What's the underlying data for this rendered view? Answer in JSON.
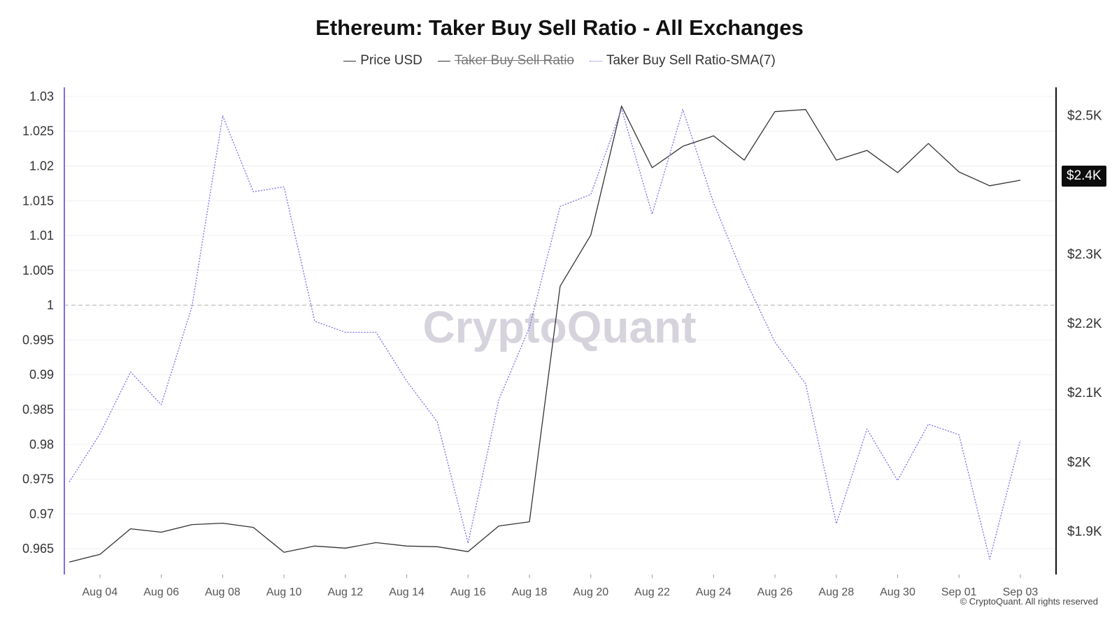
{
  "title": "Ethereum: Taker Buy Sell Ratio - All Exchanges",
  "legend": [
    {
      "label": "Price USD",
      "style": "solid",
      "color": "#333333",
      "disabled": false
    },
    {
      "label": "Taker Buy Sell Ratio",
      "style": "solid",
      "color": "#333333",
      "disabled": true
    },
    {
      "label": "Taker Buy Sell Ratio-SMA(7)",
      "style": "dotted",
      "color": "#7b6ee8",
      "disabled": false
    }
  ],
  "watermark": "CryptoQuant",
  "credit": "© CryptoQuant. All rights reserved",
  "current_price_label": "$2.4K",
  "chart_data": {
    "type": "line",
    "x": [
      "Aug 03",
      "Aug 04",
      "Aug 05",
      "Aug 06",
      "Aug 07",
      "Aug 08",
      "Aug 09",
      "Aug 10",
      "Aug 11",
      "Aug 12",
      "Aug 13",
      "Aug 14",
      "Aug 15",
      "Aug 16",
      "Aug 17",
      "Aug 18",
      "Aug 19",
      "Aug 20",
      "Aug 21",
      "Aug 22",
      "Aug 23",
      "Aug 24",
      "Aug 25",
      "Aug 26",
      "Aug 27",
      "Aug 28",
      "Aug 29",
      "Aug 30",
      "Aug 31",
      "Sep 01",
      "Sep 02",
      "Sep 03"
    ],
    "x_tick_labels": [
      "Aug 04",
      "Aug 06",
      "Aug 08",
      "Aug 10",
      "Aug 12",
      "Aug 14",
      "Aug 16",
      "Aug 18",
      "Aug 20",
      "Aug 22",
      "Aug 24",
      "Aug 26",
      "Aug 28",
      "Aug 30",
      "Sep 01",
      "Sep 03"
    ],
    "left_axis": {
      "ticks": [
        1.03,
        1.025,
        1.02,
        1.015,
        1.01,
        1.005,
        1,
        0.995,
        0.99,
        0.985,
        0.98,
        0.975,
        0.97,
        0.965
      ],
      "ylim": [
        0.9613,
        1.0313
      ]
    },
    "right_axis": {
      "ticks": [
        2500,
        2400,
        2300,
        2200,
        2100,
        2000,
        1900
      ],
      "tick_labels": [
        "$2.5K",
        "$2.4K",
        "$2.3K",
        "$2.2K",
        "$2.1K",
        "$2K",
        "$1.9K"
      ],
      "ylim": [
        1837,
        2540
      ]
    },
    "reference_line": 1,
    "grid": true,
    "series": [
      {
        "name": "Price USD",
        "axis": "right",
        "color": "#333333",
        "style": "solid",
        "values": [
          1855,
          1866,
          1903,
          1898,
          1909,
          1911,
          1905,
          1869,
          1878,
          1875,
          1883,
          1878,
          1877,
          1870,
          1907,
          1913,
          2253,
          2327,
          2513,
          2424,
          2455,
          2470,
          2435,
          2505,
          2508,
          2435,
          2449,
          2417,
          2459,
          2418,
          2398,
          2406
        ]
      },
      {
        "name": "Taker Buy Sell Ratio-SMA(7)",
        "axis": "left",
        "color": "#7b6ee8",
        "style": "dotted",
        "values": [
          0.9746,
          0.9815,
          0.9904,
          0.9857,
          0.9998,
          1.0272,
          1.0163,
          1.017,
          0.9977,
          0.9961,
          0.9961,
          0.9891,
          0.9832,
          0.9658,
          0.9864,
          0.9968,
          1.0142,
          1.0159,
          1.0282,
          1.0131,
          1.0281,
          1.0147,
          1.004,
          0.9947,
          0.9887,
          0.9686,
          0.9822,
          0.9748,
          0.9829,
          0.9814,
          0.9635,
          0.9806
        ]
      }
    ]
  }
}
